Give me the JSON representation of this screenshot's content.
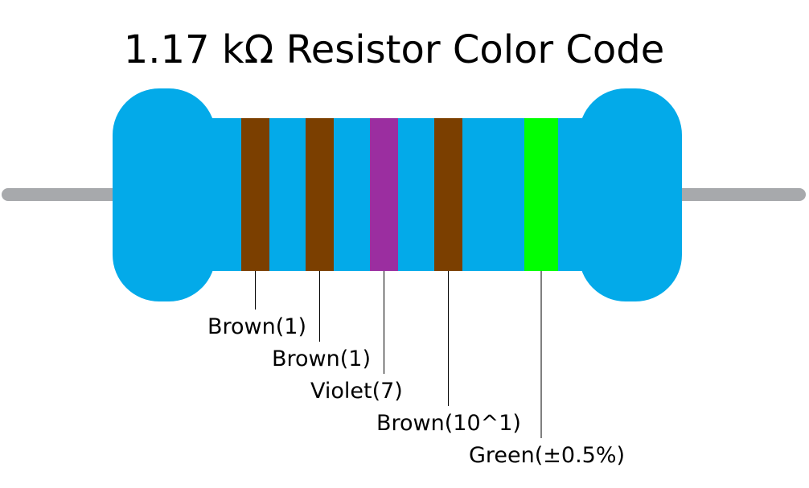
{
  "title": "1.17 kΩ Resistor Color Code",
  "bands": [
    {
      "label": "Brown(1)",
      "color": "#7b3f00"
    },
    {
      "label": "Brown(1)",
      "color": "#7b3f00"
    },
    {
      "label": "Violet(7)",
      "color": "#9b2ea0"
    },
    {
      "label": "Brown(10^1)",
      "color": "#7b3f00"
    },
    {
      "label": "Green(±0.5%)",
      "color": "#00ff00"
    }
  ]
}
